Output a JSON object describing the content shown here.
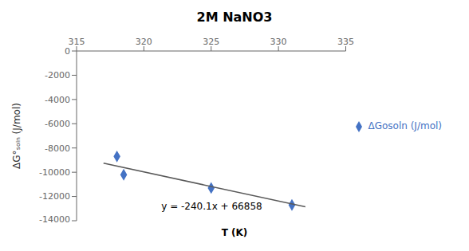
{
  "chart_data": {
    "type": "scatter",
    "title": "2M NaNO3",
    "xlabel": "T (K)",
    "ylabel": "ΔG°ₛₒₗₙ (J/mol)",
    "xlim": [
      315,
      335
    ],
    "ylim": [
      -14000,
      0
    ],
    "xticks": [
      315,
      320,
      325,
      330,
      335
    ],
    "yticks": [
      0,
      -2000,
      -4000,
      -6000,
      -8000,
      -10000,
      -12000,
      -14000
    ],
    "grid": false,
    "legend": "right",
    "series": [
      {
        "name": "ΔGosoln (J/mol)",
        "type": "scatter",
        "marker": "diamond",
        "color": "#4472C4",
        "x": [
          318,
          318.5,
          325,
          331
        ],
        "values": [
          -8700,
          -10200,
          -11300,
          -12700
        ]
      },
      {
        "type": "line",
        "line_style": "solid",
        "color": "#595959",
        "x": [
          317,
          332
        ],
        "values": [
          -9253.7,
          -12855.2
        ]
      }
    ],
    "annotations": [
      {
        "text": "y = -240.1x + 66858",
        "x": 321,
        "y": -12800
      }
    ]
  }
}
